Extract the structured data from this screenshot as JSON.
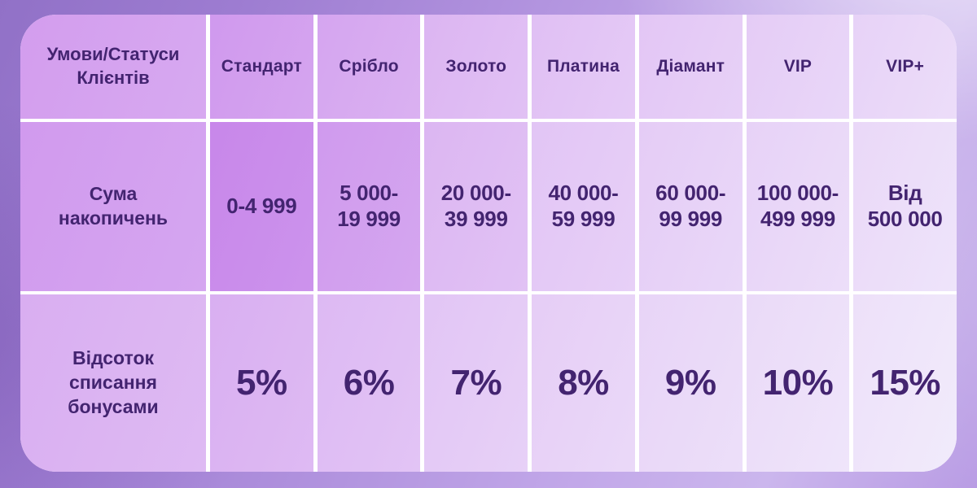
{
  "table": {
    "corner": {
      "lines": [
        "Умови/Статуси",
        "Клієнтів"
      ]
    },
    "statuses": [
      "Стандарт",
      "Срібло",
      "Золото",
      "Платина",
      "Діамант",
      "VIP",
      "VIP+"
    ],
    "accumulation_row": {
      "label_lines": [
        "Сума",
        "накопичень"
      ],
      "cells": [
        {
          "lines": [
            "0-4 999"
          ]
        },
        {
          "lines": [
            "5 000-",
            "19 999"
          ]
        },
        {
          "lines": [
            "20 000-",
            "39 999"
          ]
        },
        {
          "lines": [
            "40 000-",
            "59 999"
          ]
        },
        {
          "lines": [
            "60 000-",
            "99 999"
          ]
        },
        {
          "lines": [
            "100 000-",
            "499 999"
          ]
        },
        {
          "lines": [
            "Від",
            "500 000"
          ]
        }
      ]
    },
    "bonus_row": {
      "label_lines": [
        "Відсоток",
        "списання",
        "бонусами"
      ],
      "values": [
        "5%",
        "6%",
        "7%",
        "8%",
        "9%",
        "10%",
        "15%"
      ]
    }
  },
  "colors": {
    "text_purple": "#432470",
    "cell_gradient_start": "#d6a4f0",
    "cell_gradient_end": "#f2edfc",
    "divider_white": "#ffffff",
    "background_purple_dark": "#9171c7",
    "background_purple_light": "#cbb6ed"
  }
}
